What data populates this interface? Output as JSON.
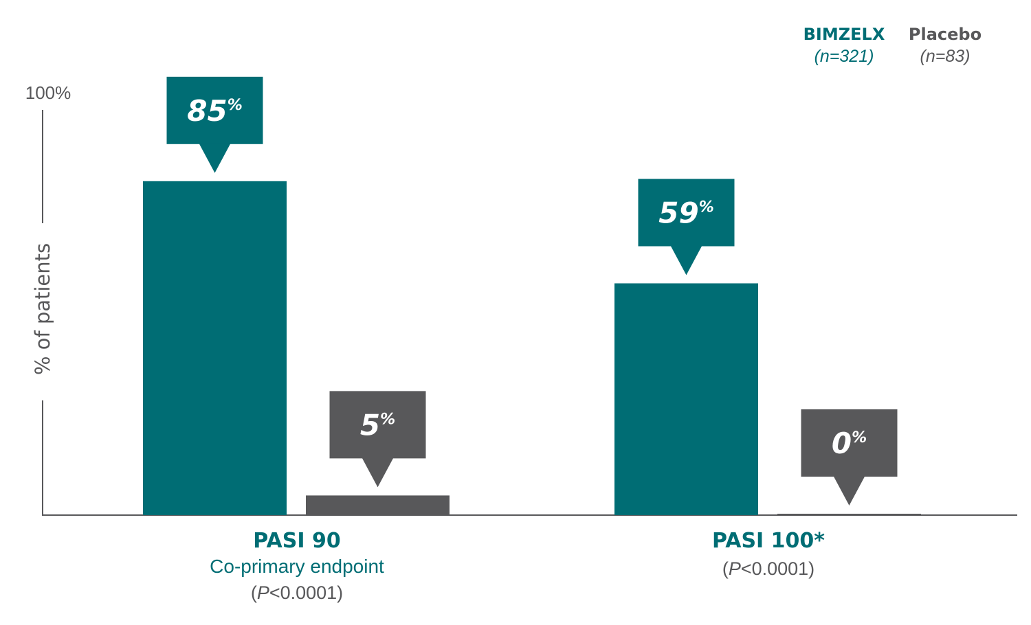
{
  "colors": {
    "bimzelx": "#006d74",
    "placebo": "#58585a",
    "axis": "#58585a"
  },
  "legend": {
    "items": [
      {
        "name": "BIMZELX",
        "n": "(n=321)",
        "color": "#006d74"
      },
      {
        "name": "Placebo",
        "n": "(n=83)",
        "color": "#58585a"
      }
    ]
  },
  "chart_data": {
    "type": "bar",
    "ylabel": "% of patients",
    "ylim": [
      0,
      100
    ],
    "yticks": [
      "100%"
    ],
    "grid": false,
    "legend_position": "top-right",
    "categories": [
      "PASI 90",
      "PASI 100*"
    ],
    "category_sublabels": [
      "Co-primary endpoint",
      ""
    ],
    "category_pvalues": [
      {
        "prefix": "(",
        "p": "P",
        "rest": "<0.0001)"
      },
      {
        "prefix": "(",
        "p": "P",
        "rest": "<0.0001)"
      }
    ],
    "series": [
      {
        "name": "BIMZELX",
        "values": [
          85,
          59
        ],
        "labels": [
          "85",
          "59"
        ],
        "color": "#006d74"
      },
      {
        "name": "Placebo",
        "values": [
          5,
          0
        ],
        "labels": [
          "5",
          "0"
        ],
        "color": "#58585a"
      }
    ],
    "value_unit": "%"
  }
}
